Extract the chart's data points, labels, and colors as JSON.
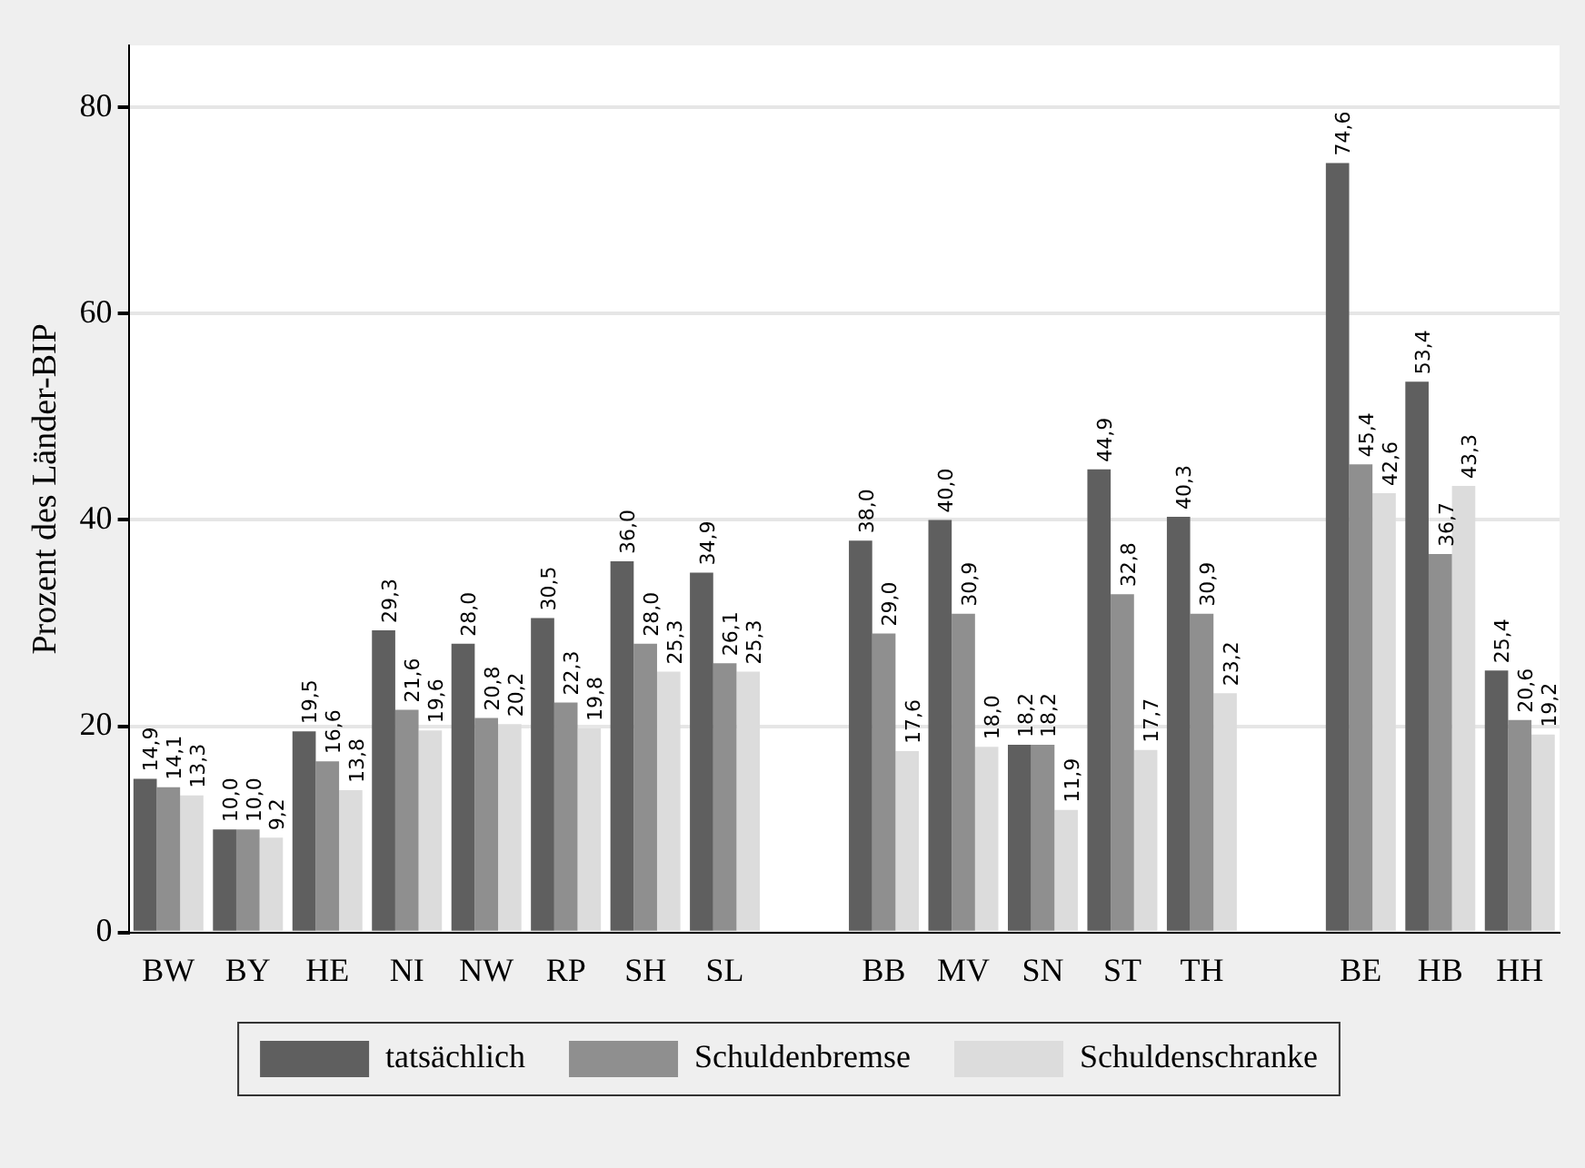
{
  "chart_data": {
    "type": "bar",
    "ylabel": "Prozent des Länder-BIP",
    "categories": [
      "BW",
      "BY",
      "HE",
      "NI",
      "NW",
      "RP",
      "SH",
      "SL",
      null,
      "BB",
      "MV",
      "SN",
      "ST",
      "TH",
      null,
      "BE",
      "HB",
      "HH"
    ],
    "series": [
      {
        "name": "tatsächlich",
        "color": "#5f5f5f",
        "values": [
          14.9,
          10.0,
          19.5,
          29.3,
          28.0,
          30.5,
          36.0,
          34.9,
          null,
          38.0,
          40.0,
          18.2,
          44.9,
          40.3,
          null,
          74.6,
          53.4,
          25.4
        ],
        "value_labels": [
          "14,9",
          "10,0",
          "19,5",
          "29,3",
          "28,0",
          "30,5",
          "36,0",
          "34,9",
          null,
          "38,0",
          "40,0",
          "18,2",
          "44,9",
          "40,3",
          null,
          "74,6",
          "53,4",
          "25,4"
        ]
      },
      {
        "name": "Schuldenbremse",
        "color": "#8f8f8f",
        "values": [
          14.1,
          10.0,
          16.6,
          21.6,
          20.8,
          22.3,
          28.0,
          26.1,
          null,
          29.0,
          30.9,
          18.2,
          32.8,
          30.9,
          null,
          45.4,
          36.7,
          20.6
        ],
        "value_labels": [
          "14,1",
          "10,0",
          "16,6",
          "21,6",
          "20,8",
          "22,3",
          "28,0",
          "26,1",
          null,
          "29,0",
          "30,9",
          "18,2",
          "32,8",
          "30,9",
          null,
          "45,4",
          "36,7",
          "20,6"
        ]
      },
      {
        "name": "Schuldenschranke",
        "color": "#dcdcdc",
        "values": [
          13.3,
          9.2,
          13.8,
          19.6,
          20.2,
          19.8,
          25.3,
          25.3,
          null,
          17.6,
          18.0,
          11.9,
          17.7,
          23.2,
          null,
          42.6,
          43.3,
          19.2
        ],
        "value_labels": [
          "13,3",
          "9,2",
          "13,8",
          "19,6",
          "20,2",
          "19,8",
          "25,3",
          "25,3",
          null,
          "17,6",
          "18,0",
          "11,9",
          "17,7",
          "23,2",
          null,
          "42,6",
          "43,3",
          "19,2"
        ]
      }
    ],
    "ylim": [
      0,
      86
    ],
    "yticks": [
      0,
      20,
      40,
      60,
      80
    ],
    "grid": "y",
    "legend": "bottom"
  }
}
